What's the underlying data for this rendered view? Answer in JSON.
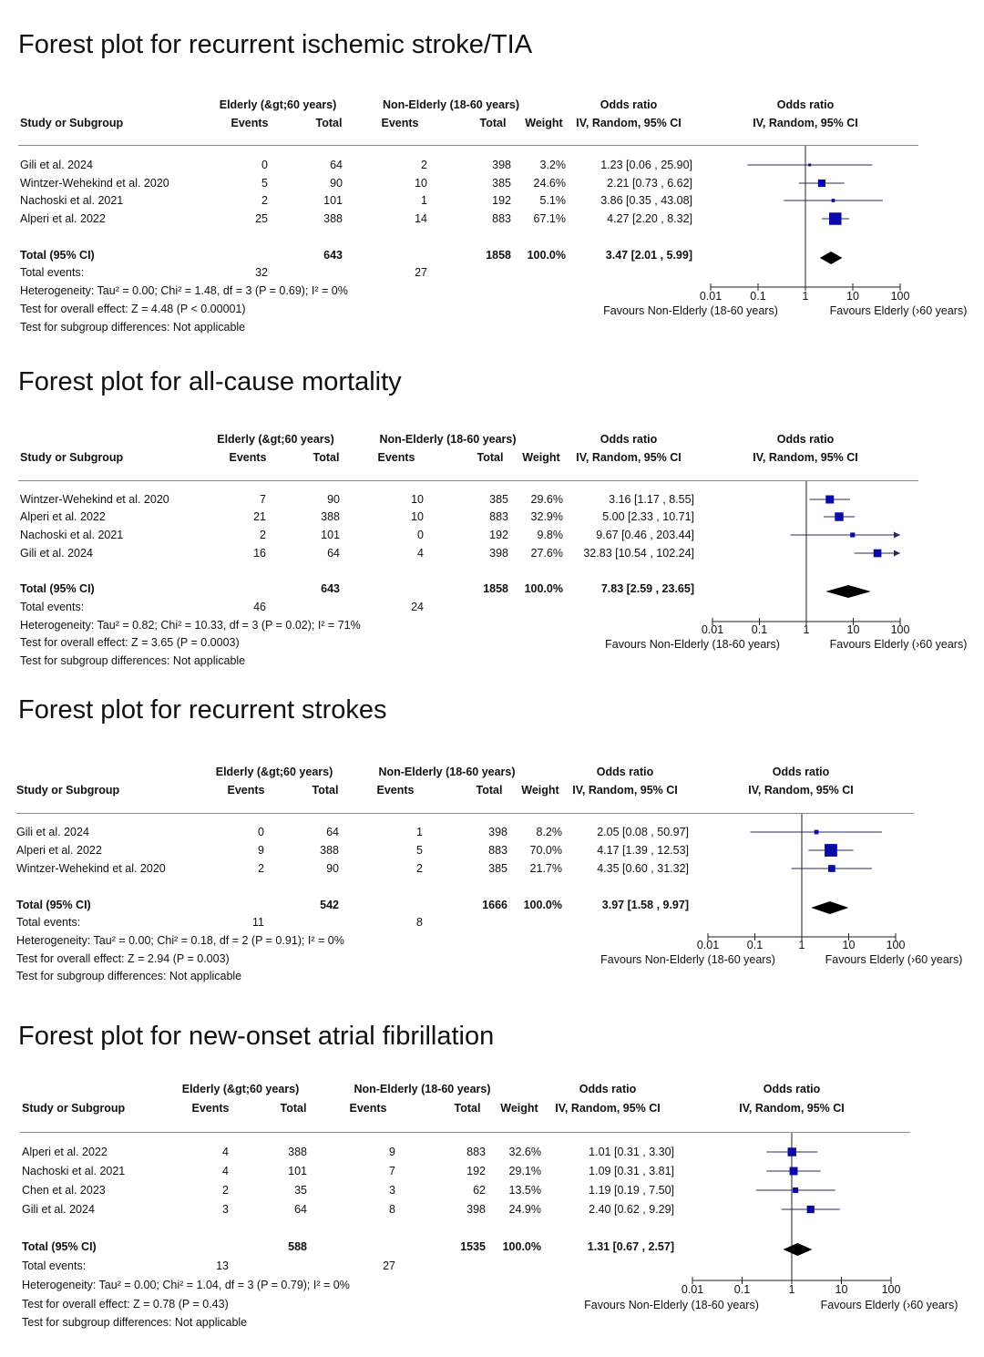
{
  "headers": {
    "elderly": "Elderly (&gt;60 years)",
    "non_elderly": "Non-Elderly (18-60 years)",
    "study": "Study or Subgroup",
    "events": "Events",
    "total": "Total",
    "weight": "Weight",
    "or_title": "Odds ratio",
    "or_method": "IV, Random, 95% CI",
    "total_row": "Total (95% CI)",
    "total_events": "Total events:",
    "subgroup_test": "Test for subgroup differences: Not applicable"
  },
  "colors": {
    "box": "#0a0aa8",
    "line": "#2a2a5a",
    "diamond": "#000000",
    "rule": "#888888"
  },
  "chart_data": [
    {
      "type": "forest",
      "title": "Forest plot for recurrent ischemic stroke/TIA",
      "x_scale": "log",
      "xlim": [
        0.01,
        100
      ],
      "ticks": [
        "0.01",
        "0.1",
        "1",
        "10",
        "100"
      ],
      "favours_left": "Favours Non-Elderly (18-60 years)",
      "favours_right": "Favours Elderly (›60 years)",
      "studies": [
        {
          "name": "Gili et al. 2024",
          "e_events": "0",
          "e_total": "64",
          "n_events": "2",
          "n_total": "398",
          "weight": "3.2%",
          "ci_text": "1.23 [0.06 , 25.90]",
          "or": 1.23,
          "lo": 0.06,
          "hi": 25.9,
          "w": 3.2
        },
        {
          "name": "Wintzer-Wehekind et al. 2020",
          "e_events": "5",
          "e_total": "90",
          "n_events": "10",
          "n_total": "385",
          "weight": "24.6%",
          "ci_text": "2.21 [0.73 , 6.62]",
          "or": 2.21,
          "lo": 0.73,
          "hi": 6.62,
          "w": 24.6
        },
        {
          "name": "Nachoski et al. 2021",
          "e_events": "2",
          "e_total": "101",
          "n_events": "1",
          "n_total": "192",
          "weight": "5.1%",
          "ci_text": "3.86 [0.35 , 43.08]",
          "or": 3.86,
          "lo": 0.35,
          "hi": 43.08,
          "w": 5.1
        },
        {
          "name": "Alperi et al. 2022",
          "e_events": "25",
          "e_total": "388",
          "n_events": "14",
          "n_total": "883",
          "weight": "67.1%",
          "ci_text": "4.27 [2.20 , 8.32]",
          "or": 4.27,
          "lo": 2.2,
          "hi": 8.32,
          "w": 67.1
        }
      ],
      "total": {
        "e_total": "643",
        "n_total": "1858",
        "weight": "100.0%",
        "ci_text": "3.47 [2.01 , 5.99]",
        "or": 3.47,
        "lo": 2.01,
        "hi": 5.99
      },
      "total_events": {
        "e": "32",
        "n": "27"
      },
      "heterogeneity": "Heterogeneity: Tau² = 0.00; Chi² = 1.48, df = 3 (P = 0.69); I² = 0%",
      "overall_effect": "Test for overall effect: Z = 4.48 (P < 0.00001)"
    },
    {
      "type": "forest",
      "title": "Forest plot for all-cause mortality",
      "x_scale": "log",
      "xlim": [
        0.01,
        100
      ],
      "ticks": [
        "0.01",
        "0.1",
        "1",
        "10",
        "100"
      ],
      "favours_left": "Favours Non-Elderly (18-60 years)",
      "favours_right": "Favours Elderly (›60 years)",
      "studies": [
        {
          "name": "Wintzer-Wehekind et al. 2020",
          "e_events": "7",
          "e_total": "90",
          "n_events": "10",
          "n_total": "385",
          "weight": "29.6%",
          "ci_text": "3.16 [1.17 , 8.55]",
          "or": 3.16,
          "lo": 1.17,
          "hi": 8.55,
          "w": 29.6
        },
        {
          "name": "Alperi et al. 2022",
          "e_events": "21",
          "e_total": "388",
          "n_events": "10",
          "n_total": "883",
          "weight": "32.9%",
          "ci_text": "5.00 [2.33 , 10.71]",
          "or": 5.0,
          "lo": 2.33,
          "hi": 10.71,
          "w": 32.9
        },
        {
          "name": "Nachoski et al. 2021",
          "e_events": "2",
          "e_total": "101",
          "n_events": "0",
          "n_total": "192",
          "weight": "9.8%",
          "ci_text": "9.67 [0.46 , 203.44]",
          "or": 9.67,
          "lo": 0.46,
          "hi": 203.44,
          "w": 9.8
        },
        {
          "name": "Gili et al. 2024",
          "e_events": "16",
          "e_total": "64",
          "n_events": "4",
          "n_total": "398",
          "weight": "27.6%",
          "ci_text": "32.83 [10.54 , 102.24]",
          "or": 32.83,
          "lo": 10.54,
          "hi": 102.24,
          "w": 27.6
        }
      ],
      "total": {
        "e_total": "643",
        "n_total": "1858",
        "weight": "100.0%",
        "ci_text": "7.83 [2.59 , 23.65]",
        "or": 7.83,
        "lo": 2.59,
        "hi": 23.65
      },
      "total_events": {
        "e": "46",
        "n": "24"
      },
      "heterogeneity": "Heterogeneity: Tau² = 0.82; Chi² = 10.33, df = 3 (P = 0.02); I² = 71%",
      "overall_effect": "Test for overall effect: Z = 3.65 (P = 0.0003)"
    },
    {
      "type": "forest",
      "title": "Forest plot for recurrent strokes",
      "x_scale": "log",
      "xlim": [
        0.01,
        100
      ],
      "ticks": [
        "0.01",
        "0.1",
        "1",
        "10",
        "100"
      ],
      "favours_left": "Favours Non-Elderly (18-60 years)",
      "favours_right": "Favours Elderly (›60 years)",
      "studies": [
        {
          "name": "Gili et al. 2024",
          "e_events": "0",
          "e_total": "64",
          "n_events": "1",
          "n_total": "398",
          "weight": "8.2%",
          "ci_text": "2.05 [0.08 , 50.97]",
          "or": 2.05,
          "lo": 0.08,
          "hi": 50.97,
          "w": 8.2
        },
        {
          "name": "Alperi et al. 2022",
          "e_events": "9",
          "e_total": "388",
          "n_events": "5",
          "n_total": "883",
          "weight": "70.0%",
          "ci_text": "4.17 [1.39 , 12.53]",
          "or": 4.17,
          "lo": 1.39,
          "hi": 12.53,
          "w": 70.0
        },
        {
          "name": "Wintzer-Wehekind et al. 2020",
          "e_events": "2",
          "e_total": "90",
          "n_events": "2",
          "n_total": "385",
          "weight": "21.7%",
          "ci_text": "4.35 [0.60 , 31.32]",
          "or": 4.35,
          "lo": 0.6,
          "hi": 31.32,
          "w": 21.7
        }
      ],
      "total": {
        "e_total": "542",
        "n_total": "1666",
        "weight": "100.0%",
        "ci_text": "3.97 [1.58 , 9.97]",
        "or": 3.97,
        "lo": 1.58,
        "hi": 9.97
      },
      "total_events": {
        "e": "11",
        "n": "8"
      },
      "heterogeneity": "Heterogeneity: Tau² = 0.00; Chi² = 0.18, df = 2 (P = 0.91); I² = 0%",
      "overall_effect": "Test for overall effect: Z = 2.94 (P = 0.003)"
    },
    {
      "type": "forest",
      "title": "Forest plot for new-onset atrial fibrillation",
      "x_scale": "log",
      "xlim": [
        0.01,
        100
      ],
      "ticks": [
        "0.01",
        "0.1",
        "1",
        "10",
        "100"
      ],
      "favours_left": "Favours Non-Elderly (18-60 years)",
      "favours_right": "Favours Elderly (›60 years)",
      "studies": [
        {
          "name": "Alperi et al. 2022",
          "e_events": "4",
          "e_total": "388",
          "n_events": "9",
          "n_total": "883",
          "weight": "32.6%",
          "ci_text": "1.01 [0.31 , 3.30]",
          "or": 1.01,
          "lo": 0.31,
          "hi": 3.3,
          "w": 32.6
        },
        {
          "name": "Nachoski et al. 2021",
          "e_events": "4",
          "e_total": "101",
          "n_events": "7",
          "n_total": "192",
          "weight": "29.1%",
          "ci_text": "1.09 [0.31 , 3.81]",
          "or": 1.09,
          "lo": 0.31,
          "hi": 3.81,
          "w": 29.1
        },
        {
          "name": "Chen et al. 2023",
          "e_events": "2",
          "e_total": "35",
          "n_events": "3",
          "n_total": "62",
          "weight": "13.5%",
          "ci_text": "1.19 [0.19 , 7.50]",
          "or": 1.19,
          "lo": 0.19,
          "hi": 7.5,
          "w": 13.5
        },
        {
          "name": "Gili et al. 2024",
          "e_events": "3",
          "e_total": "64",
          "n_events": "8",
          "n_total": "398",
          "weight": "24.9%",
          "ci_text": "2.40 [0.62 , 9.29]",
          "or": 2.4,
          "lo": 0.62,
          "hi": 9.29,
          "w": 24.9
        }
      ],
      "total": {
        "e_total": "588",
        "n_total": "1535",
        "weight": "100.0%",
        "ci_text": "1.31 [0.67 , 2.57]",
        "or": 1.31,
        "lo": 0.67,
        "hi": 2.57
      },
      "total_events": {
        "e": "13",
        "n": "27"
      },
      "heterogeneity": "Heterogeneity: Tau² = 0.00; Chi² = 1.04, df = 3 (P = 0.79); I² = 0%",
      "overall_effect": "Test for overall effect: Z = 0.78 (P = 0.43)"
    }
  ]
}
